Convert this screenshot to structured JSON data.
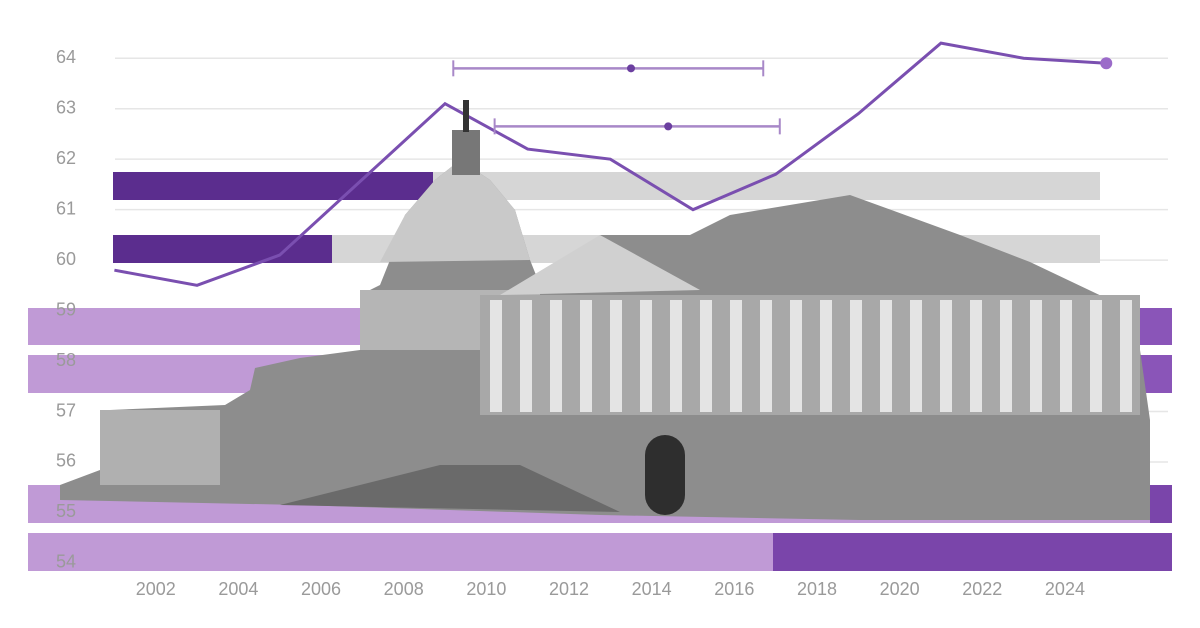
{
  "chart_data": {
    "type": "line",
    "x": [
      2001,
      2003,
      2005,
      2007,
      2009,
      2011,
      2013,
      2015,
      2017,
      2019,
      2021,
      2023,
      2025
    ],
    "series": [
      {
        "color": "#7a4fb0",
        "values": [
          59.8,
          59.5,
          60.1,
          61.6,
          63.1,
          62.2,
          62.0,
          61.0,
          61.7,
          62.9,
          64.3,
          64.0,
          63.9
        ]
      }
    ],
    "intervals": [
      {
        "y": 63.8,
        "low": 2009.2,
        "mid": 2013.5,
        "high": 2016.7
      },
      {
        "y": 62.65,
        "low": 2010.2,
        "mid": 2014.4,
        "high": 2017.1
      }
    ],
    "xlim": [
      2000.7,
      2026.3
    ],
    "ylim": [
      53.8,
      64.5
    ],
    "xticks": [
      2002,
      2004,
      2006,
      2008,
      2010,
      2012,
      2014,
      2016,
      2018,
      2020,
      2022,
      2024
    ],
    "yticks": [
      54,
      55,
      56,
      57,
      58,
      59,
      60,
      61,
      62,
      63,
      64
    ],
    "grid": true
  }
}
